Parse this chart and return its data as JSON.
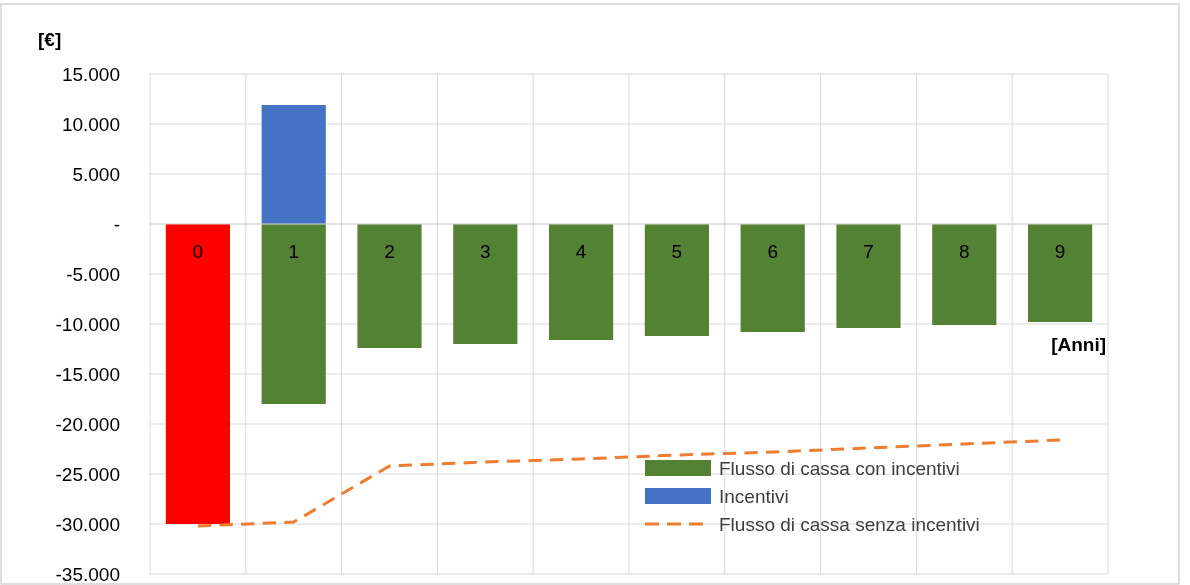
{
  "chart_data": {
    "type": "bar",
    "ylabel": "[€]",
    "xlabel": "[Anni]",
    "stacked": true,
    "categories": [
      "0",
      "1",
      "2",
      "3",
      "4",
      "5",
      "6",
      "7",
      "8",
      "9"
    ],
    "series": [
      {
        "name": "Flusso di cassa con incentivi",
        "color": "#548235",
        "colors": [
          "#ff0000",
          "#548235",
          "#548235",
          "#548235",
          "#548235",
          "#548235",
          "#548235",
          "#548235",
          "#548235",
          "#548235"
        ],
        "values": [
          -30000,
          -18000,
          -12400,
          -12000,
          -11600,
          -11200,
          -10800,
          -10400,
          -10100,
          -9800
        ]
      },
      {
        "name": "Incentivi",
        "color": "#4472c4",
        "values": [
          null,
          11900,
          null,
          null,
          null,
          null,
          null,
          null,
          null,
          null
        ]
      },
      {
        "name": "Flusso di cassa senza incentivi",
        "type": "line",
        "color": "#ed7d31",
        "line_style": "dashed",
        "marker": "none",
        "values": [
          -30200,
          -29800,
          -24200,
          -23800,
          -23500,
          -23100,
          -22800,
          -22400,
          -22000,
          -21600
        ]
      }
    ],
    "ylim": [
      -35000,
      15000
    ],
    "yticks": [
      {
        "value": -35000,
        "label": "-35.000"
      },
      {
        "value": -30000,
        "label": "-30.000"
      },
      {
        "value": -25000,
        "label": "-25.000"
      },
      {
        "value": -20000,
        "label": "-20.000"
      },
      {
        "value": -15000,
        "label": "-15.000"
      },
      {
        "value": -10000,
        "label": "-10.000"
      },
      {
        "value": -5000,
        "label": "-5.000"
      },
      {
        "value": 0,
        "label": "-"
      },
      {
        "value": 5000,
        "label": "5.000"
      },
      {
        "value": 10000,
        "label": "10.000"
      },
      {
        "value": 15000,
        "label": "15.000"
      }
    ],
    "grid": true,
    "legend": "bottom right"
  }
}
